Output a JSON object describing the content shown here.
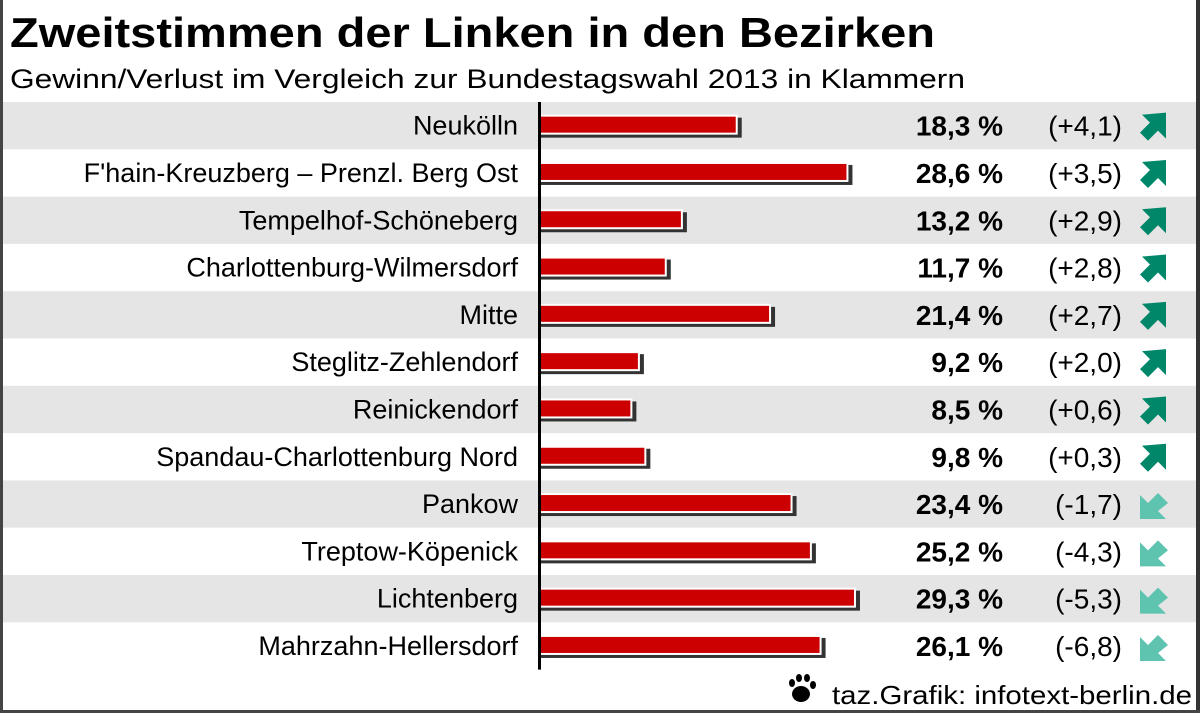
{
  "chart_data": {
    "type": "bar",
    "orientation": "horizontal",
    "title": "Zweitstimmen der Linken in den Bezirken",
    "subtitle": "Gewinn/Verlust im Vergleich zur Bundestagswahl 2013 in Klammern",
    "unit": "%",
    "xlim": [
      0,
      30
    ],
    "grid": false,
    "categories": [
      "Neukölln",
      "F'hain-Kreuzberg – Prenzl. Berg Ost",
      "Tempelhof-Schöneberg",
      "Charlottenburg-Wilmersdorf",
      "Mitte",
      "Steglitz-Zehlendorf",
      "Reinickendorf",
      "Spandau-Charlottenburg Nord",
      "Pankow",
      "Treptow-Köpenick",
      "Lichtenberg",
      "Mahrzahn-Hellersdorf"
    ],
    "values": [
      18.3,
      28.6,
      13.2,
      11.7,
      21.4,
      9.2,
      8.5,
      9.8,
      23.4,
      25.2,
      29.3,
      26.1
    ],
    "value_labels": [
      "18,3 %",
      "28,6 %",
      "13,2 %",
      "11,7 %",
      "21,4 %",
      "9,2 %",
      "8,5 %",
      "9,8 %",
      "23,4 %",
      "25,2 %",
      "29,3 %",
      "26,1 %"
    ],
    "changes": [
      4.1,
      3.5,
      2.9,
      2.8,
      2.7,
      2.0,
      0.6,
      0.3,
      -1.7,
      -4.3,
      -5.3,
      -6.8
    ],
    "change_labels": [
      "(+4,1)",
      "(+3,5)",
      "(+2,9)",
      "(+2,8)",
      "(+2,7)",
      "(+2,0)",
      "(+0,6)",
      "(+0,3)",
      "(-1,7)",
      "(-4,3)",
      "(-5,3)",
      "(-6,8)"
    ],
    "colors": {
      "bar": "#cc0000",
      "shadow": "#333333",
      "row_alt": "#e5e5e5",
      "gain_arrow": "#00876a",
      "loss_arrow": "#5ec4b0"
    },
    "icons": {
      "gain": "arrow-up-right-icon",
      "loss": "arrow-down-left-icon",
      "credit": "paw-icon"
    }
  },
  "credit": "taz.Grafik: infotext-berlin.de"
}
